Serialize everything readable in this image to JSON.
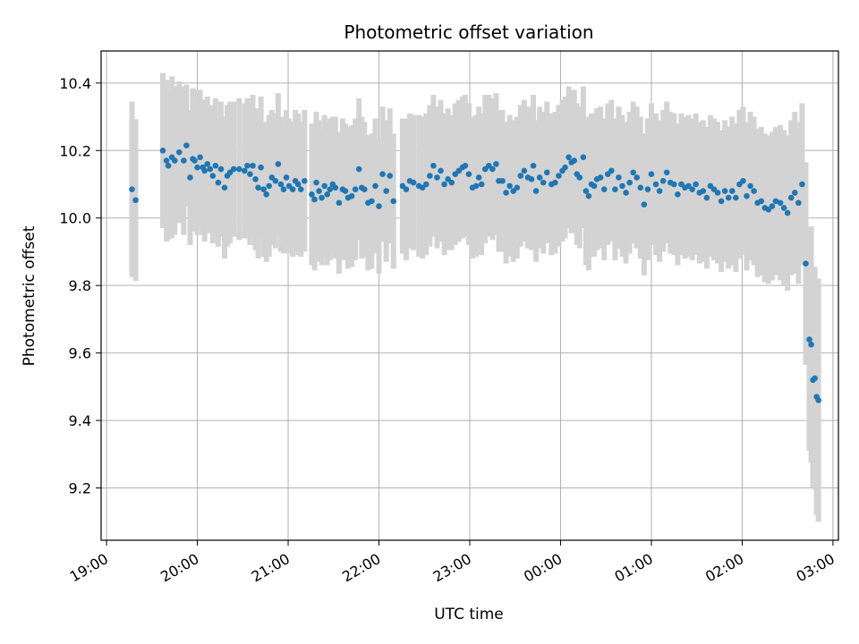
{
  "chart_data": {
    "type": "scatter",
    "title": "Photometric offset variation",
    "xlabel": "UTC time",
    "ylabel": "Photometric offset",
    "x_unit": "hours since 19:00 UTC",
    "xlim": [
      -0.06,
      8.06
    ],
    "ylim": [
      9.045,
      10.495
    ],
    "grid": true,
    "colors": {
      "point": "#1f77b4",
      "errorbar": "#d3d3d3"
    },
    "x_ticks": [
      {
        "value": 0,
        "label": "19:00"
      },
      {
        "value": 1,
        "label": "20:00"
      },
      {
        "value": 2,
        "label": "21:00"
      },
      {
        "value": 3,
        "label": "22:00"
      },
      {
        "value": 4,
        "label": "23:00"
      },
      {
        "value": 5,
        "label": "00:00"
      },
      {
        "value": 6,
        "label": "01:00"
      },
      {
        "value": 7,
        "label": "02:00"
      },
      {
        "value": 8,
        "label": "03:00"
      }
    ],
    "y_ticks": [
      {
        "value": 9.2,
        "label": "9.2"
      },
      {
        "value": 9.4,
        "label": "9.4"
      },
      {
        "value": 9.6,
        "label": "9.6"
      },
      {
        "value": 9.8,
        "label": "9.8"
      },
      {
        "value": 10.0,
        "label": "10.0"
      },
      {
        "value": 10.2,
        "label": "10.2"
      },
      {
        "value": 10.4,
        "label": "10.4"
      }
    ],
    "points": [
      [
        0.28,
        10.085,
        0.26
      ],
      [
        0.32,
        10.053,
        0.24
      ],
      [
        0.62,
        10.2,
        0.23
      ],
      [
        0.66,
        10.17,
        0.24
      ],
      [
        0.68,
        10.155,
        0.22
      ],
      [
        0.72,
        10.18,
        0.24
      ],
      [
        0.75,
        10.17,
        0.22
      ],
      [
        0.8,
        10.195,
        0.21
      ],
      [
        0.85,
        10.17,
        0.22
      ],
      [
        0.88,
        10.215,
        0.18
      ],
      [
        0.92,
        10.12,
        0.2
      ],
      [
        0.95,
        10.175,
        0.21
      ],
      [
        0.97,
        10.17,
        0.21
      ],
      [
        1.0,
        10.15,
        0.2
      ],
      [
        1.03,
        10.18,
        0.2
      ],
      [
        1.06,
        10.15,
        0.2
      ],
      [
        1.08,
        10.14,
        0.21
      ],
      [
        1.11,
        10.16,
        0.2
      ],
      [
        1.14,
        10.145,
        0.19
      ],
      [
        1.17,
        10.125,
        0.2
      ],
      [
        1.2,
        10.155,
        0.2
      ],
      [
        1.23,
        10.105,
        0.19
      ],
      [
        1.26,
        10.145,
        0.2
      ],
      [
        1.3,
        10.09,
        0.21
      ],
      [
        1.33,
        10.125,
        0.21
      ],
      [
        1.36,
        10.135,
        0.21
      ],
      [
        1.4,
        10.145,
        0.2
      ],
      [
        1.46,
        10.145,
        0.21
      ],
      [
        1.52,
        10.14,
        0.2
      ],
      [
        1.55,
        10.155,
        0.2
      ],
      [
        1.58,
        10.13,
        0.21
      ],
      [
        1.61,
        10.155,
        0.21
      ],
      [
        1.64,
        10.115,
        0.21
      ],
      [
        1.67,
        10.09,
        0.21
      ],
      [
        1.7,
        10.15,
        0.21
      ],
      [
        1.73,
        10.085,
        0.2
      ],
      [
        1.76,
        10.07,
        0.2
      ],
      [
        1.79,
        10.095,
        0.21
      ],
      [
        1.82,
        10.12,
        0.2
      ],
      [
        1.86,
        10.11,
        0.2
      ],
      [
        1.89,
        10.16,
        0.21
      ],
      [
        1.92,
        10.1,
        0.2
      ],
      [
        1.95,
        10.085,
        0.19
      ],
      [
        1.98,
        10.12,
        0.2
      ],
      [
        2.01,
        10.095,
        0.2
      ],
      [
        2.05,
        10.085,
        0.2
      ],
      [
        2.08,
        10.11,
        0.21
      ],
      [
        2.11,
        10.1,
        0.21
      ],
      [
        2.14,
        10.085,
        0.2
      ],
      [
        2.18,
        10.11,
        0.21
      ],
      [
        2.26,
        10.07,
        0.21
      ],
      [
        2.29,
        10.055,
        0.21
      ],
      [
        2.31,
        10.105,
        0.21
      ],
      [
        2.34,
        10.08,
        0.21
      ],
      [
        2.37,
        10.06,
        0.2
      ],
      [
        2.4,
        10.095,
        0.21
      ],
      [
        2.43,
        10.07,
        0.21
      ],
      [
        2.46,
        10.085,
        0.21
      ],
      [
        2.49,
        10.1,
        0.2
      ],
      [
        2.52,
        10.09,
        0.21
      ],
      [
        2.56,
        10.045,
        0.21
      ],
      [
        2.6,
        10.085,
        0.21
      ],
      [
        2.63,
        10.08,
        0.2
      ],
      [
        2.66,
        10.06,
        0.21
      ],
      [
        2.7,
        10.065,
        0.21
      ],
      [
        2.74,
        10.085,
        0.21
      ],
      [
        2.78,
        10.145,
        0.21
      ],
      [
        2.81,
        10.09,
        0.21
      ],
      [
        2.84,
        10.085,
        0.2
      ],
      [
        2.88,
        10.045,
        0.2
      ],
      [
        2.92,
        10.05,
        0.2
      ],
      [
        2.96,
        10.095,
        0.2
      ],
      [
        3.0,
        10.035,
        0.2
      ],
      [
        3.04,
        10.13,
        0.2
      ],
      [
        3.08,
        10.08,
        0.21
      ],
      [
        3.12,
        10.125,
        0.2
      ],
      [
        3.16,
        10.05,
        0.2
      ],
      [
        3.26,
        10.095,
        0.2
      ],
      [
        3.3,
        10.085,
        0.21
      ],
      [
        3.34,
        10.11,
        0.2
      ],
      [
        3.38,
        10.105,
        0.2
      ],
      [
        3.44,
        10.095,
        0.21
      ],
      [
        3.48,
        10.09,
        0.21
      ],
      [
        3.52,
        10.1,
        0.21
      ],
      [
        3.56,
        10.125,
        0.21
      ],
      [
        3.6,
        10.155,
        0.21
      ],
      [
        3.64,
        10.12,
        0.21
      ],
      [
        3.68,
        10.14,
        0.21
      ],
      [
        3.72,
        10.1,
        0.21
      ],
      [
        3.76,
        10.115,
        0.21
      ],
      [
        3.8,
        10.105,
        0.2
      ],
      [
        3.84,
        10.13,
        0.21
      ],
      [
        3.88,
        10.14,
        0.21
      ],
      [
        3.92,
        10.15,
        0.21
      ],
      [
        3.95,
        10.155,
        0.21
      ],
      [
        3.99,
        10.13,
        0.21
      ],
      [
        4.03,
        10.09,
        0.21
      ],
      [
        4.07,
        10.095,
        0.21
      ],
      [
        4.1,
        10.12,
        0.21
      ],
      [
        4.13,
        10.1,
        0.21
      ],
      [
        4.17,
        10.145,
        0.22
      ],
      [
        4.21,
        10.155,
        0.21
      ],
      [
        4.25,
        10.145,
        0.21
      ],
      [
        4.29,
        10.16,
        0.21
      ],
      [
        4.32,
        10.11,
        0.21
      ],
      [
        4.36,
        10.11,
        0.21
      ],
      [
        4.4,
        10.075,
        0.21
      ],
      [
        4.44,
        10.095,
        0.21
      ],
      [
        4.48,
        10.08,
        0.21
      ],
      [
        4.52,
        10.09,
        0.21
      ],
      [
        4.56,
        10.125,
        0.21
      ],
      [
        4.6,
        10.14,
        0.21
      ],
      [
        4.64,
        10.12,
        0.21
      ],
      [
        4.68,
        10.115,
        0.21
      ],
      [
        4.7,
        10.155,
        0.21
      ],
      [
        4.73,
        10.08,
        0.21
      ],
      [
        4.77,
        10.12,
        0.21
      ],
      [
        4.81,
        10.105,
        0.21
      ],
      [
        4.85,
        10.135,
        0.21
      ],
      [
        4.9,
        10.1,
        0.21
      ],
      [
        4.94,
        10.105,
        0.21
      ],
      [
        4.98,
        10.125,
        0.21
      ],
      [
        5.02,
        10.14,
        0.21
      ],
      [
        5.05,
        10.15,
        0.21
      ],
      [
        5.09,
        10.18,
        0.21
      ],
      [
        5.12,
        10.165,
        0.21
      ],
      [
        5.15,
        10.17,
        0.21
      ],
      [
        5.18,
        10.13,
        0.21
      ],
      [
        5.21,
        10.12,
        0.21
      ],
      [
        5.25,
        10.18,
        0.21
      ],
      [
        5.28,
        10.08,
        0.22
      ],
      [
        5.31,
        10.065,
        0.22
      ],
      [
        5.34,
        10.1,
        0.21
      ],
      [
        5.37,
        10.095,
        0.21
      ],
      [
        5.4,
        10.115,
        0.21
      ],
      [
        5.44,
        10.12,
        0.21
      ],
      [
        5.48,
        10.085,
        0.21
      ],
      [
        5.52,
        10.13,
        0.21
      ],
      [
        5.56,
        10.14,
        0.21
      ],
      [
        5.6,
        10.085,
        0.21
      ],
      [
        5.64,
        10.12,
        0.21
      ],
      [
        5.68,
        10.095,
        0.21
      ],
      [
        5.72,
        10.075,
        0.21
      ],
      [
        5.76,
        10.105,
        0.21
      ],
      [
        5.8,
        10.135,
        0.21
      ],
      [
        5.84,
        10.12,
        0.21
      ],
      [
        5.88,
        10.09,
        0.21
      ],
      [
        5.92,
        10.04,
        0.21
      ],
      [
        5.96,
        10.085,
        0.21
      ],
      [
        6.0,
        10.13,
        0.21
      ],
      [
        6.05,
        10.1,
        0.21
      ],
      [
        6.09,
        10.08,
        0.21
      ],
      [
        6.13,
        10.11,
        0.21
      ],
      [
        6.17,
        10.135,
        0.21
      ],
      [
        6.21,
        10.105,
        0.21
      ],
      [
        6.25,
        10.1,
        0.21
      ],
      [
        6.29,
        10.07,
        0.21
      ],
      [
        6.33,
        10.1,
        0.21
      ],
      [
        6.37,
        10.09,
        0.21
      ],
      [
        6.41,
        10.095,
        0.21
      ],
      [
        6.45,
        10.085,
        0.21
      ],
      [
        6.49,
        10.1,
        0.21
      ],
      [
        6.53,
        10.075,
        0.21
      ],
      [
        6.57,
        10.08,
        0.21
      ],
      [
        6.61,
        10.06,
        0.21
      ],
      [
        6.65,
        10.095,
        0.21
      ],
      [
        6.69,
        10.085,
        0.21
      ],
      [
        6.73,
        10.075,
        0.21
      ],
      [
        6.77,
        10.05,
        0.21
      ],
      [
        6.81,
        10.08,
        0.21
      ],
      [
        6.85,
        10.06,
        0.21
      ],
      [
        6.89,
        10.08,
        0.22
      ],
      [
        6.93,
        10.06,
        0.22
      ],
      [
        6.97,
        10.1,
        0.22
      ],
      [
        7.01,
        10.11,
        0.22
      ],
      [
        7.05,
        10.065,
        0.22
      ],
      [
        7.09,
        10.095,
        0.22
      ],
      [
        7.13,
        10.08,
        0.22
      ],
      [
        7.17,
        10.045,
        0.22
      ],
      [
        7.21,
        10.05,
        0.22
      ],
      [
        7.25,
        10.03,
        0.22
      ],
      [
        7.29,
        10.025,
        0.22
      ],
      [
        7.33,
        10.035,
        0.22
      ],
      [
        7.37,
        10.05,
        0.22
      ],
      [
        7.42,
        10.045,
        0.23
      ],
      [
        7.46,
        10.03,
        0.23
      ],
      [
        7.5,
        10.015,
        0.23
      ],
      [
        7.54,
        10.06,
        0.23
      ],
      [
        7.58,
        10.075,
        0.24
      ],
      [
        7.62,
        10.045,
        0.24
      ],
      [
        7.66,
        10.1,
        0.24
      ],
      [
        7.7,
        9.865,
        0.3
      ],
      [
        7.74,
        9.64,
        0.33
      ],
      [
        7.76,
        9.625,
        0.35
      ],
      [
        7.78,
        9.52,
        0.32
      ],
      [
        7.8,
        9.525,
        0.33
      ],
      [
        7.82,
        9.47,
        0.35
      ],
      [
        7.84,
        9.46,
        0.36
      ]
    ]
  }
}
